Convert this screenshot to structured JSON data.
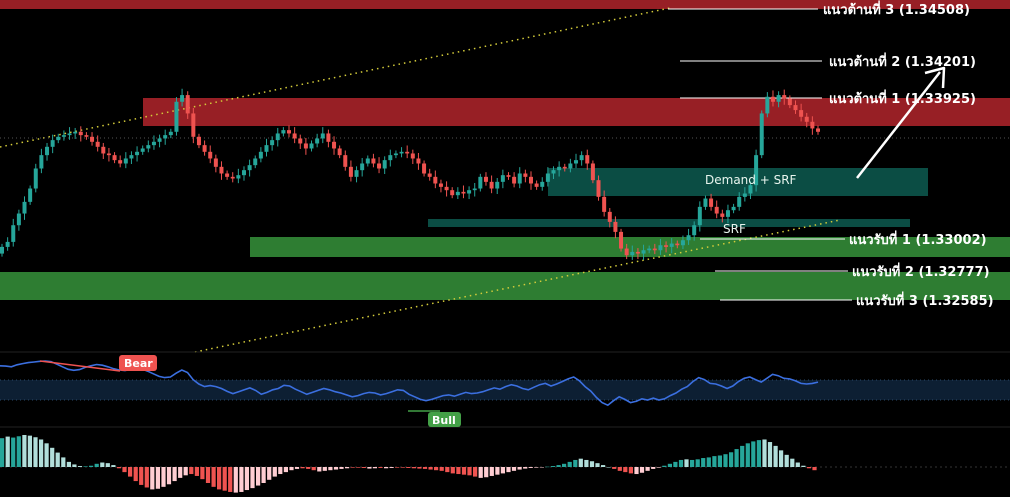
{
  "chart_data": {
    "type": "candlestick",
    "colors": {
      "bull": "#26a69a",
      "bear": "#ef5350",
      "resistance_zone": "#b2252b",
      "support_zone": "#2e7d32",
      "demand_zone": "#0b4d44",
      "trendline": "#d4cc3a",
      "oscillator": "#3b6fe0",
      "divergence": "#ef5350"
    },
    "price_range": [
      1.3242,
      1.3453
    ],
    "resistance_levels": [
      {
        "label": "แนวต้านที่ 3 (1.34508)",
        "value": 1.34508
      },
      {
        "label": "แนวต้านที่ 2 (1.34201)",
        "value": 1.34201
      },
      {
        "label": "แนวต้านที่ 1 (1.33925)",
        "value": 1.33925
      }
    ],
    "support_levels": [
      {
        "label": "แนวรับที่ 1 (1.33002)",
        "value": 1.33002
      },
      {
        "label": "แนวรับที่ 2 (1.32777)",
        "value": 1.32777
      },
      {
        "label": "แนวรับที่ 3 (1.32585)",
        "value": 1.32585
      }
    ],
    "zones": [
      {
        "label": "",
        "kind": "resistance",
        "low": 1.3383,
        "high": 1.3401
      },
      {
        "label": "Demand + SRF",
        "kind": "demand",
        "low": 1.3342,
        "high": 1.3358
      },
      {
        "label": "SRF",
        "kind": "demand",
        "low": 1.3314,
        "high": 1.3318
      },
      {
        "label": "",
        "kind": "support",
        "low": 1.3292,
        "high": 1.3303
      },
      {
        "label": "",
        "kind": "support",
        "low": 1.3259,
        "high": 1.3277
      }
    ],
    "oscillator_tags": [
      {
        "label": "Bear",
        "color": "#ef5350"
      },
      {
        "label": "Bull",
        "color": "#43a047"
      }
    ],
    "forecast_arrow": {
      "from": 1.3356,
      "to": 1.3419
    },
    "closes": [
      1.3305,
      1.3308,
      1.3318,
      1.3325,
      1.3332,
      1.334,
      1.3352,
      1.336,
      1.3365,
      1.3369,
      1.3371,
      1.3372,
      1.3373,
      1.3374,
      1.3372,
      1.3371,
      1.3368,
      1.3365,
      1.3361,
      1.336,
      1.3357,
      1.3355,
      1.3358,
      1.336,
      1.3362,
      1.3364,
      1.3366,
      1.3368,
      1.337,
      1.3372,
      1.3374,
      1.3392,
      1.3396,
      1.3385,
      1.3371,
      1.3366,
      1.3362,
      1.3358,
      1.3353,
      1.3349,
      1.3347,
      1.3346,
      1.3348,
      1.3351,
      1.3354,
      1.3358,
      1.3362,
      1.3366,
      1.3369,
      1.3373,
      1.3375,
      1.3373,
      1.337,
      1.3367,
      1.3364,
      1.3367,
      1.337,
      1.3373,
      1.3368,
      1.3364,
      1.336,
      1.3353,
      1.3347,
      1.3351,
      1.3355,
      1.3358,
      1.3355,
      1.3352,
      1.3357,
      1.336,
      1.3361,
      1.3362,
      1.3361,
      1.3358,
      1.3355,
      1.3349,
      1.3347,
      1.3343,
      1.3341,
      1.3339,
      1.3336,
      1.3338,
      1.3337,
      1.3339,
      1.334,
      1.3347,
      1.3344,
      1.334,
      1.3344,
      1.3348,
      1.3347,
      1.3343,
      1.3349,
      1.3347,
      1.3343,
      1.3341,
      1.3344,
      1.3349,
      1.3351,
      1.3353,
      1.3352,
      1.3355,
      1.3357,
      1.336,
      1.3355,
      1.3345,
      1.3335,
      1.3326,
      1.332,
      1.3314,
      1.3304,
      1.33,
      1.3302,
      1.3301,
      1.3303,
      1.3304,
      1.3303,
      1.3306,
      1.3305,
      1.3307,
      1.3306,
      1.3309,
      1.3312,
      1.3318,
      1.3329,
      1.3334,
      1.3329,
      1.3325,
      1.3323,
      1.3327,
      1.3329,
      1.3335,
      1.3337,
      1.3342,
      1.336,
      1.3385,
      1.3395,
      1.3392,
      1.3396,
      1.3394,
      1.339,
      1.3387,
      1.3383,
      1.338,
      1.3376,
      1.3374
    ],
    "oscillator": [
      0.85,
      0.84,
      0.82,
      0.88,
      0.92,
      0.95,
      0.97,
      0.99,
      1.0,
      0.98,
      0.9,
      0.82,
      0.74,
      0.71,
      0.73,
      0.8,
      0.85,
      0.89,
      0.87,
      0.82,
      0.76,
      0.72,
      0.7,
      0.74,
      0.79,
      0.75,
      0.68,
      0.6,
      0.52,
      0.48,
      0.5,
      0.62,
      0.72,
      0.64,
      0.42,
      0.28,
      0.2,
      0.23,
      0.2,
      0.14,
      0.05,
      -0.02,
      0.04,
      0.1,
      0.16,
      0.08,
      -0.04,
      0.02,
      0.1,
      0.14,
      0.24,
      0.22,
      0.12,
      0.04,
      -0.04,
      0.02,
      0.08,
      0.14,
      0.1,
      0.04,
      0.0,
      -0.06,
      -0.12,
      -0.08,
      -0.02,
      0.02,
      0.0,
      -0.06,
      -0.02,
      0.04,
      0.1,
      0.08,
      -0.04,
      -0.12,
      -0.2,
      -0.24,
      -0.2,
      -0.14,
      -0.08,
      -0.06,
      -0.1,
      -0.04,
      0.02,
      -0.02,
      0.0,
      0.04,
      0.1,
      0.16,
      0.12,
      0.2,
      0.26,
      0.22,
      0.14,
      0.1,
      0.18,
      0.26,
      0.3,
      0.22,
      0.28,
      0.36,
      0.44,
      0.5,
      0.38,
      0.2,
      0.06,
      -0.14,
      -0.3,
      -0.38,
      -0.24,
      -0.12,
      -0.2,
      -0.3,
      -0.26,
      -0.18,
      -0.22,
      -0.16,
      -0.22,
      -0.18,
      -0.08,
      0.0,
      0.12,
      0.2,
      0.36,
      0.48,
      0.42,
      0.3,
      0.28,
      0.22,
      0.14,
      0.22,
      0.36,
      0.46,
      0.5,
      0.42,
      0.34,
      0.46,
      0.58,
      0.54,
      0.46,
      0.44,
      0.38,
      0.3,
      0.28,
      0.3,
      0.34
    ],
    "histogram": [
      0.9,
      0.95,
      0.92,
      0.96,
      1.0,
      0.98,
      0.93,
      0.86,
      0.74,
      0.6,
      0.45,
      0.3,
      0.16,
      0.08,
      0.03,
      0.02,
      0.04,
      0.1,
      0.14,
      0.12,
      0.06,
      -0.04,
      -0.16,
      -0.3,
      -0.44,
      -0.56,
      -0.64,
      -0.7,
      -0.68,
      -0.62,
      -0.54,
      -0.44,
      -0.34,
      -0.26,
      -0.22,
      -0.28,
      -0.38,
      -0.5,
      -0.62,
      -0.7,
      -0.74,
      -0.78,
      -0.8,
      -0.78,
      -0.72,
      -0.66,
      -0.58,
      -0.5,
      -0.4,
      -0.3,
      -0.22,
      -0.16,
      -0.1,
      -0.06,
      -0.04,
      -0.06,
      -0.1,
      -0.14,
      -0.12,
      -0.1,
      -0.08,
      -0.06,
      -0.04,
      -0.02,
      -0.02,
      -0.03,
      -0.05,
      -0.04,
      -0.03,
      -0.04,
      -0.03,
      -0.02,
      -0.02,
      -0.03,
      -0.04,
      -0.05,
      -0.06,
      -0.08,
      -0.1,
      -0.12,
      -0.16,
      -0.2,
      -0.22,
      -0.24,
      -0.26,
      -0.3,
      -0.34,
      -0.32,
      -0.28,
      -0.24,
      -0.2,
      -0.16,
      -0.12,
      -0.08,
      -0.05,
      -0.03,
      -0.02,
      -0.01,
      0.01,
      0.03,
      0.06,
      0.1,
      0.16,
      0.22,
      0.26,
      0.22,
      0.18,
      0.12,
      0.06,
      0.0,
      -0.06,
      -0.12,
      -0.16,
      -0.2,
      -0.22,
      -0.18,
      -0.12,
      -0.06,
      -0.02,
      0.04,
      0.1,
      0.16,
      0.22,
      0.24,
      0.22,
      0.24,
      0.28,
      0.3,
      0.34,
      0.36,
      0.4,
      0.46,
      0.56,
      0.66,
      0.74,
      0.8,
      0.84,
      0.86,
      0.78,
      0.66,
      0.52,
      0.38,
      0.26,
      0.14,
      0.04,
      -0.04,
      -0.1
    ]
  }
}
